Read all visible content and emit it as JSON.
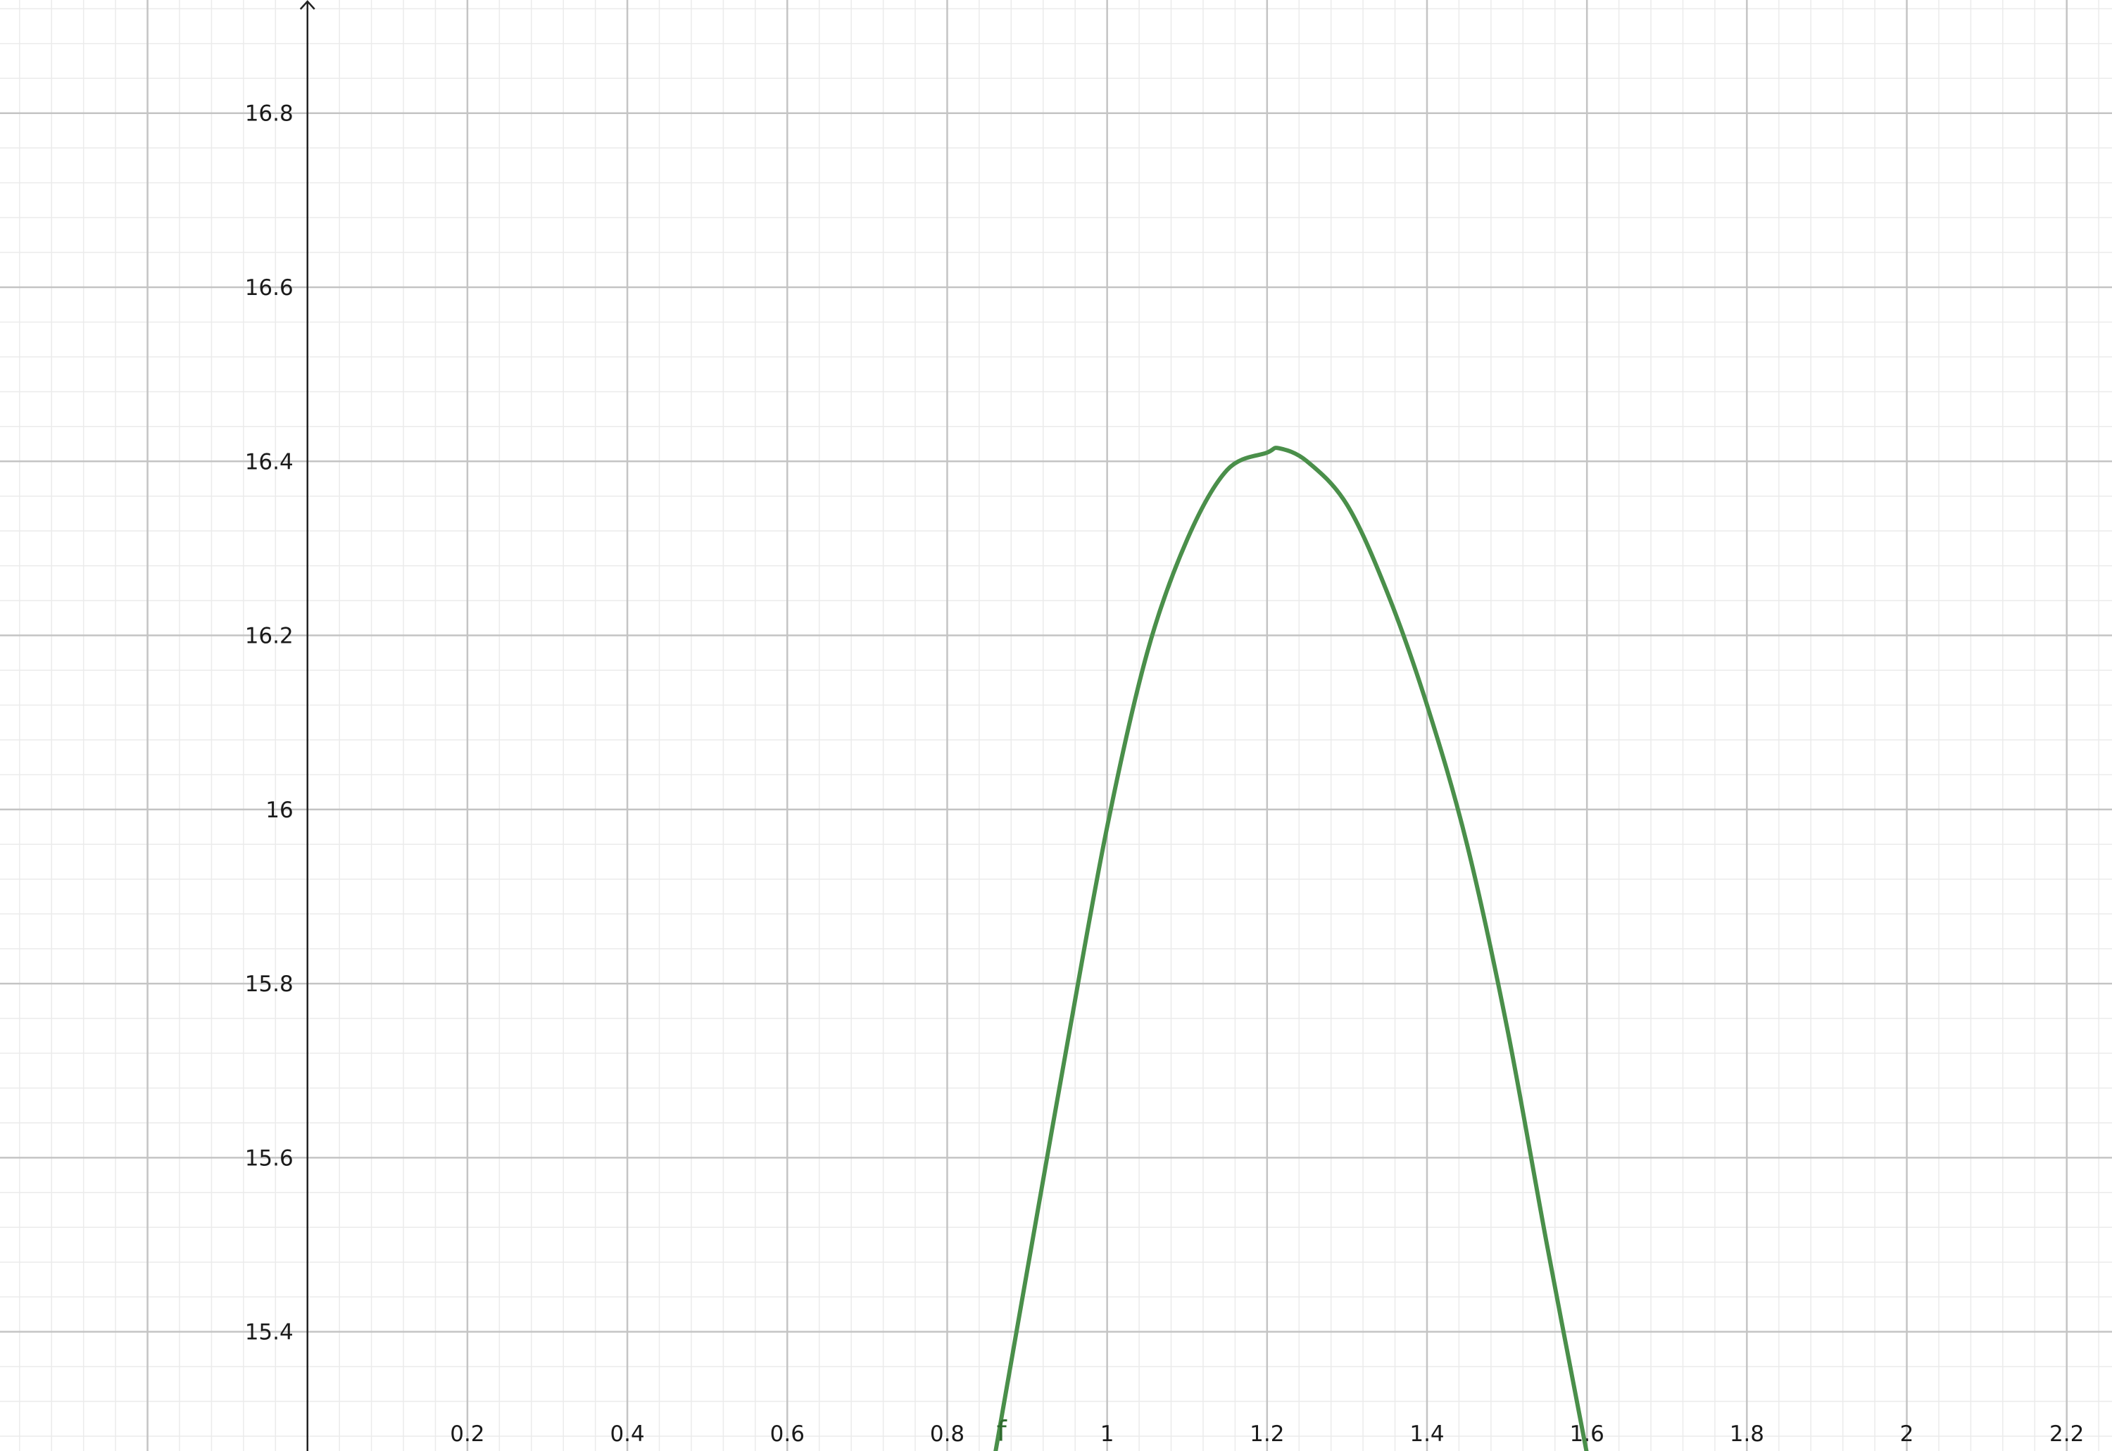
{
  "chart_data": {
    "type": "line",
    "title": "",
    "xlabel": "",
    "ylabel": "",
    "xlim": [
      -0.3845,
      2.2566
    ],
    "ylim": [
      15.263,
      16.93
    ],
    "grid": true,
    "x_ticks": [
      "0.2",
      "0.4",
      "0.6",
      "0.8",
      "1",
      "1.2",
      "1.4",
      "1.6",
      "1.8",
      "2",
      "2.2"
    ],
    "y_ticks": [
      "15.4",
      "15.6",
      "15.8",
      "16",
      "16.2",
      "16.4",
      "16.6",
      "16.8"
    ],
    "series": [
      {
        "name": "f",
        "color": "#4a8f4a",
        "x": [
          0.86,
          0.9,
          0.95,
          1.0,
          1.05,
          1.1,
          1.15,
          1.2,
          1.215,
          1.25,
          1.3,
          1.35,
          1.4,
          1.45,
          1.5,
          1.55,
          1.6
        ],
        "y": [
          15.26,
          15.47,
          15.73,
          15.98,
          16.18,
          16.31,
          16.39,
          16.41,
          16.415,
          16.4,
          16.35,
          16.25,
          16.12,
          15.96,
          15.75,
          15.5,
          15.26
        ]
      }
    ]
  }
}
